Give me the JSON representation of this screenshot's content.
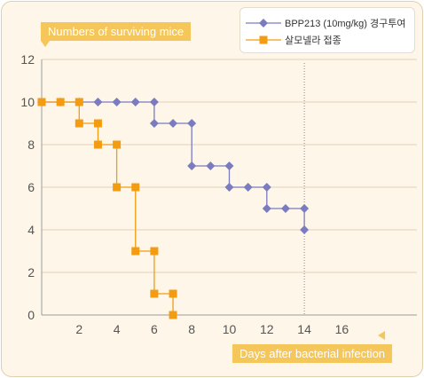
{
  "chart_data": {
    "type": "line",
    "ylabel": "Numbers of surviving mice",
    "xlabel": "Days after bacterial infection",
    "xlim": [
      0,
      20
    ],
    "ylim": [
      0,
      12
    ],
    "xticks": [
      2,
      4,
      6,
      8,
      10,
      12,
      14,
      16
    ],
    "yticks": [
      0,
      2,
      4,
      6,
      8,
      10,
      12
    ],
    "grid": "horizontal",
    "reference_line_x": 14,
    "legend_position": "top-right",
    "series": [
      {
        "name": "BPP213 (10mg/kg) 경구투여",
        "color": "#7b7bc0",
        "marker": "diamond",
        "points": [
          [
            0,
            10
          ],
          [
            1,
            10
          ],
          [
            2,
            10
          ],
          [
            3,
            10
          ],
          [
            4,
            10
          ],
          [
            5,
            10
          ],
          [
            6,
            10
          ],
          [
            6,
            9
          ],
          [
            7,
            9
          ],
          [
            8,
            9
          ],
          [
            8,
            7
          ],
          [
            9,
            7
          ],
          [
            10,
            7
          ],
          [
            10,
            6
          ],
          [
            11,
            6
          ],
          [
            12,
            6
          ],
          [
            12,
            5
          ],
          [
            13,
            5
          ],
          [
            14,
            5
          ],
          [
            14,
            4
          ]
        ]
      },
      {
        "name": "살모넬라 접종",
        "color": "#f39c12",
        "marker": "square",
        "points": [
          [
            0,
            10
          ],
          [
            1,
            10
          ],
          [
            2,
            10
          ],
          [
            2,
            9
          ],
          [
            3,
            9
          ],
          [
            3,
            8
          ],
          [
            4,
            8
          ],
          [
            4,
            6
          ],
          [
            5,
            6
          ],
          [
            5,
            3
          ],
          [
            6,
            3
          ],
          [
            6,
            1
          ],
          [
            7,
            1
          ],
          [
            7,
            0
          ]
        ]
      }
    ]
  }
}
